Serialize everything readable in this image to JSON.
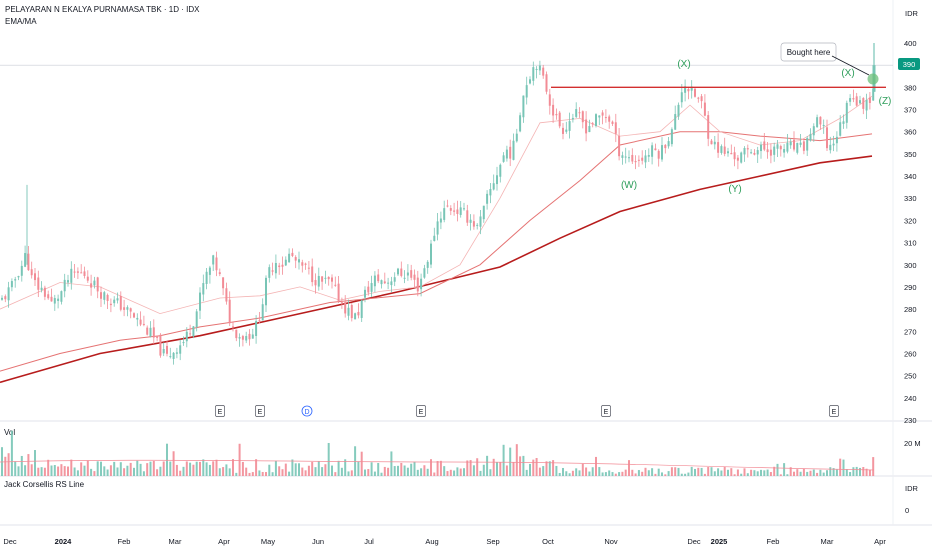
{
  "header": {
    "title": "PELAYARAN N EKALYA PURNAMASA TBK · 1D · IDX",
    "indicator": "EMA/MA"
  },
  "currency": "IDR",
  "price_tag": "390",
  "panes": {
    "volume_label": "Vol",
    "volume_tick": "20 M",
    "rs_label": "Jack Corsellis RS Line",
    "rs_currency": "IDR",
    "rs_tick": "0"
  },
  "colors": {
    "up": "#78c5b6",
    "down": "#f28b95",
    "ma_dark": "#b71c1c",
    "ma_light": "#e57373",
    "ema_faint": "#f4b4b4",
    "resistance": "#d32f2f",
    "label_green": "#2e9e5b",
    "price_tag": "#089981"
  },
  "chart_data": {
    "type": "candlestick",
    "title": "PELAYARAN N EKALYA PURNAMASA TBK · 1D · IDX",
    "y_axis": {
      "ticks": [
        230,
        240,
        250,
        260,
        270,
        280,
        290,
        300,
        310,
        320,
        330,
        340,
        350,
        360,
        370,
        380,
        390,
        400
      ],
      "range": [
        228,
        405
      ],
      "unit": "IDR"
    },
    "x_axis": {
      "ticks": [
        "Dec",
        "2024",
        "Feb",
        "Mar",
        "Apr",
        "May",
        "Jun",
        "Jul",
        "Aug",
        "Sep",
        "Oct",
        "Nov",
        "Dec",
        "2025",
        "Feb",
        "Mar",
        "Apr"
      ]
    },
    "price_path": [
      [
        0,
        283
      ],
      [
        12,
        290
      ],
      [
        17,
        296
      ],
      [
        22,
        300
      ],
      [
        26,
        305
      ],
      [
        32,
        293
      ],
      [
        38,
        290
      ],
      [
        44,
        288
      ],
      [
        52,
        282
      ],
      [
        62,
        288
      ],
      [
        70,
        295
      ],
      [
        76,
        296
      ],
      [
        84,
        296
      ],
      [
        92,
        292
      ],
      [
        100,
        288
      ],
      [
        110,
        284
      ],
      [
        120,
        282
      ],
      [
        130,
        278
      ],
      [
        142,
        273
      ],
      [
        152,
        268
      ],
      [
        160,
        262
      ],
      [
        166,
        258
      ],
      [
        175,
        262
      ],
      [
        185,
        266
      ],
      [
        196,
        278
      ],
      [
        205,
        294
      ],
      [
        214,
        302
      ],
      [
        220,
        294
      ],
      [
        226,
        282
      ],
      [
        232,
        272
      ],
      [
        240,
        268
      ],
      [
        248,
        268
      ],
      [
        256,
        272
      ],
      [
        262,
        282
      ],
      [
        268,
        296
      ],
      [
        276,
        302
      ],
      [
        284,
        300
      ],
      [
        290,
        305
      ],
      [
        298,
        300
      ],
      [
        306,
        298
      ],
      [
        314,
        294
      ],
      [
        322,
        292
      ],
      [
        330,
        292
      ],
      [
        338,
        286
      ],
      [
        346,
        280
      ],
      [
        356,
        276
      ],
      [
        366,
        288
      ],
      [
        376,
        294
      ],
      [
        386,
        292
      ],
      [
        396,
        296
      ],
      [
        408,
        296
      ],
      [
        418,
        290
      ],
      [
        424,
        298
      ],
      [
        430,
        306
      ],
      [
        436,
        318
      ],
      [
        442,
        324
      ],
      [
        448,
        326
      ],
      [
        454,
        325
      ],
      [
        460,
        324
      ],
      [
        466,
        322
      ],
      [
        472,
        320
      ],
      [
        478,
        316
      ],
      [
        486,
        328
      ],
      [
        494,
        338
      ],
      [
        500,
        345
      ],
      [
        506,
        352
      ],
      [
        512,
        350
      ],
      [
        516,
        358
      ],
      [
        520,
        370
      ],
      [
        526,
        382
      ],
      [
        532,
        388
      ],
      [
        536,
        392
      ],
      [
        541,
        386
      ],
      [
        546,
        380
      ],
      [
        551,
        372
      ],
      [
        556,
        366
      ],
      [
        562,
        361
      ],
      [
        568,
        364
      ],
      [
        574,
        368
      ],
      [
        580,
        366
      ],
      [
        586,
        362
      ],
      [
        592,
        364
      ],
      [
        598,
        366
      ],
      [
        605,
        368
      ],
      [
        612,
        364
      ],
      [
        618,
        352
      ],
      [
        624,
        350
      ],
      [
        630,
        348
      ],
      [
        636,
        347
      ],
      [
        642,
        348
      ],
      [
        648,
        350
      ],
      [
        654,
        352
      ],
      [
        660,
        350
      ],
      [
        666,
        356
      ],
      [
        672,
        360
      ],
      [
        678,
        372
      ],
      [
        682,
        380
      ],
      [
        686,
        382
      ],
      [
        690,
        378
      ],
      [
        696,
        376
      ],
      [
        702,
        372
      ],
      [
        708,
        360
      ],
      [
        714,
        354
      ],
      [
        720,
        352
      ],
      [
        726,
        350
      ],
      [
        732,
        350
      ],
      [
        738,
        348
      ],
      [
        744,
        350
      ],
      [
        752,
        352
      ],
      [
        760,
        352
      ],
      [
        770,
        352
      ],
      [
        780,
        352
      ],
      [
        790,
        353
      ],
      [
        800,
        352
      ],
      [
        806,
        354
      ],
      [
        812,
        362
      ],
      [
        818,
        364
      ],
      [
        824,
        360
      ],
      [
        828,
        352
      ],
      [
        834,
        356
      ],
      [
        840,
        362
      ],
      [
        846,
        370
      ],
      [
        850,
        378
      ],
      [
        854,
        376
      ],
      [
        858,
        372
      ],
      [
        862,
        372
      ],
      [
        866,
        374
      ],
      [
        870,
        376
      ],
      [
        876,
        382
      ]
    ],
    "series": [
      {
        "type": "line",
        "values": [
          [
            0,
            247
          ],
          [
            100,
            260
          ],
          [
            200,
            268
          ],
          [
            300,
            278
          ],
          [
            400,
            288
          ],
          [
            500,
            299
          ],
          [
            560,
            312
          ],
          [
            620,
            324
          ],
          [
            700,
            334
          ],
          [
            760,
            340
          ],
          [
            820,
            346
          ],
          [
            872,
            349
          ]
        ]
      },
      {
        "type": "line",
        "values": [
          [
            0,
            252
          ],
          [
            60,
            260
          ],
          [
            120,
            266
          ],
          [
            160,
            268
          ],
          [
            200,
            272
          ],
          [
            260,
            276
          ],
          [
            330,
            283
          ],
          [
            420,
            287
          ],
          [
            480,
            300
          ],
          [
            530,
            320
          ],
          [
            580,
            338
          ],
          [
            620,
            354
          ],
          [
            680,
            360
          ],
          [
            720,
            360
          ],
          [
            760,
            358
          ],
          [
            820,
            356
          ],
          [
            872,
            359
          ]
        ]
      },
      {
        "type": "line",
        "values": [
          [
            0,
            280
          ],
          [
            60,
            292
          ],
          [
            100,
            290
          ],
          [
            160,
            278
          ],
          [
            220,
            285
          ],
          [
            260,
            286
          ],
          [
            300,
            290
          ],
          [
            340,
            284
          ],
          [
            380,
            288
          ],
          [
            420,
            290
          ],
          [
            460,
            300
          ],
          [
            500,
            330
          ],
          [
            540,
            364
          ],
          [
            580,
            366
          ],
          [
            620,
            358
          ],
          [
            660,
            360
          ],
          [
            690,
            372
          ],
          [
            720,
            360
          ],
          [
            760,
            354
          ],
          [
            800,
            356
          ],
          [
            840,
            366
          ],
          [
            872,
            376
          ]
        ]
      }
    ],
    "resistance_line": {
      "y": 380,
      "x_range": [
        "Sep",
        "Apr"
      ]
    },
    "pattern_labels": [
      "(X)",
      "(W)",
      "(X)",
      "(Y)",
      "(X)",
      "(Z)"
    ],
    "annotation": "Bought here",
    "event_markers": [
      "E",
      "E",
      "D",
      "E",
      "E",
      "E"
    ],
    "volume": {
      "label": "Vol",
      "tick": "20 M"
    }
  }
}
